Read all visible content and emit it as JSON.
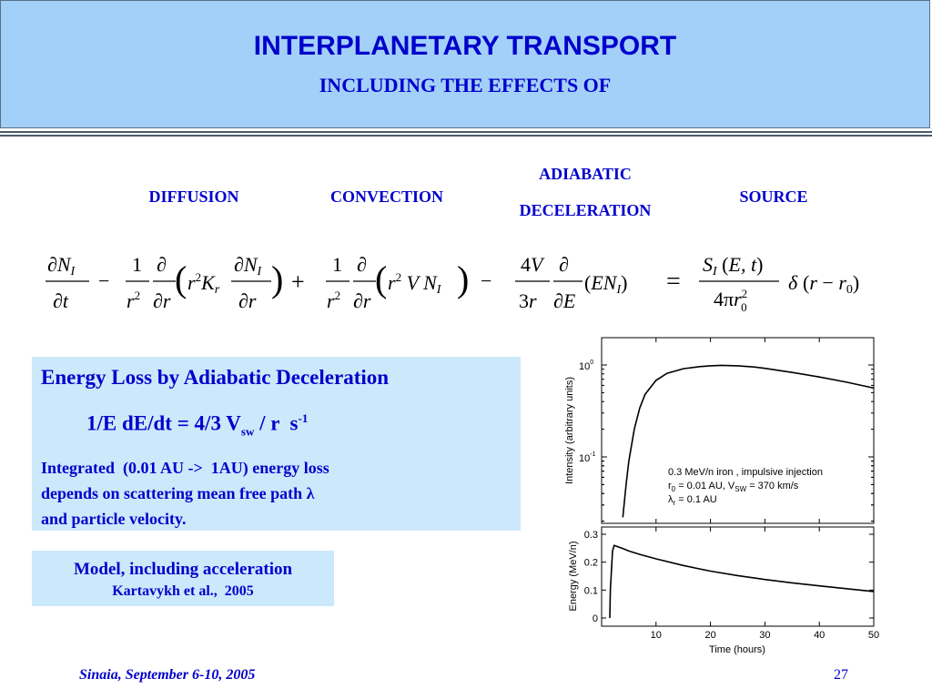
{
  "header": {
    "title": "INTERPLANETARY TRANSPORT",
    "subtitle": "INCLUDING THE EFFECTS OF"
  },
  "terms": {
    "diffusion": "DIFFUSION",
    "convection": "CONVECTION",
    "adiabatic_line1": "ADIABATIC",
    "adiabatic_line2": "DECELERATION",
    "source": "SOURCE"
  },
  "equation": {
    "text": "∂N_I/∂t − (1/r²)∂/∂r(r²K_r ∂N_I/∂r) + (1/r²)∂/∂r(r² V N_I) − (4V/3r)∂/∂E(EN_I) = S_I(E,t)/(4πr_0²) δ(r − r_0)"
  },
  "energy_box": {
    "title": "Energy Loss by Adiabatic Deceleration",
    "formula_main": "1/E dE/dt = 4/3 V",
    "formula_sub": "sw",
    "formula_tail": " / r  s",
    "formula_sup": "-1",
    "line1": "Integrated  (0.01 AU ->  1AU) energy loss",
    "line2": "depends on scattering mean free path λ",
    "line3": "and particle velocity."
  },
  "model_box": {
    "line1": "Model, including acceleration",
    "line2": "Kartavykh et al.,  2005"
  },
  "chart_data": [
    {
      "type": "line",
      "ylabel": "Intensity  (arbitrary units)",
      "yscale": "log",
      "yticks": [
        "10^0",
        "10^-1"
      ],
      "xlim": [
        0,
        50
      ],
      "annotations": [
        "0.3 MeV/n iron ,  impulsive injection",
        "r0 = 0.01 AU,  VSW = 370 km/s",
        "λr = 0.1 AU"
      ],
      "series": [
        {
          "x": [
            3.9,
            4.5,
            5,
            6,
            7,
            8,
            10,
            12,
            15,
            18,
            20,
            22,
            25,
            28,
            30,
            35,
            40,
            45,
            50
          ],
          "y": [
            0.022,
            0.05,
            0.09,
            0.2,
            0.34,
            0.48,
            0.68,
            0.81,
            0.91,
            0.96,
            0.98,
            0.99,
            0.98,
            0.95,
            0.92,
            0.83,
            0.74,
            0.65,
            0.56
          ]
        }
      ]
    },
    {
      "type": "line",
      "xlabel": "Time  (hours)",
      "ylabel": "Energy  (MeV/n)",
      "xlim": [
        0,
        50
      ],
      "ylim": [
        0,
        0.3
      ],
      "xticks": [
        10,
        20,
        30,
        40,
        50
      ],
      "yticks": [
        0,
        0.1,
        0.2,
        0.3
      ],
      "series": [
        {
          "x": [
            1.5,
            1.55,
            1.6,
            2.0,
            2.3,
            3.0,
            4,
            5,
            7,
            10,
            15,
            20,
            25,
            30,
            35,
            40,
            45,
            50
          ],
          "y": [
            0.0,
            0.05,
            0.1,
            0.24,
            0.26,
            0.255,
            0.248,
            0.24,
            0.228,
            0.212,
            0.188,
            0.168,
            0.152,
            0.138,
            0.126,
            0.115,
            0.105,
            0.095
          ]
        }
      ]
    }
  ],
  "footer": {
    "left": "Sinaia, September 6-10, 2005",
    "page": "27"
  }
}
